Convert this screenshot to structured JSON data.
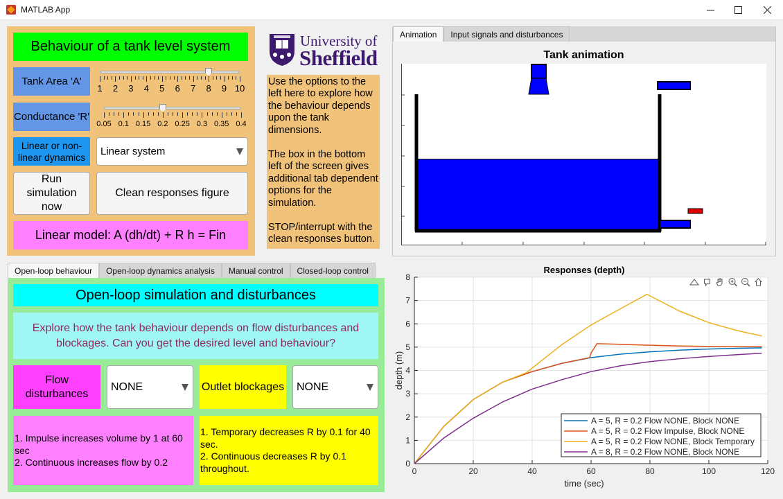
{
  "window": {
    "title": "MATLAB App"
  },
  "header": {
    "title": "Behaviour of a tank level system"
  },
  "controls": {
    "tank_area": {
      "label": "Tank Area 'A'",
      "ticks": [
        "1",
        "2",
        "3",
        "4",
        "5",
        "6",
        "7",
        "8",
        "9",
        "10"
      ],
      "value": 8
    },
    "conductance": {
      "label": "Conductance 'R'",
      "ticks": [
        "0.05",
        "0.1",
        "0.15",
        "0.2",
        "0.25",
        "0.3",
        "0.35",
        "0.4"
      ],
      "value": 0.2
    },
    "dynamics": {
      "label": "Linear or non-linear dynamics",
      "selected": "Linear system"
    },
    "run_button": "Run simulation now",
    "clean_button": "Clean responses figure",
    "model_text": "Linear model:  A (dh/dt) + R h = Fin"
  },
  "logo": {
    "line1": "University of",
    "line2": "Sheffield"
  },
  "instructions": {
    "p1": "Use the options to the left here to explore how the behaviour depends upon the tank dimensions.",
    "p2": "The box in the bottom left of the screen gives additional tab dependent options for the simulation.",
    "p3": "STOP/interrupt with the clean responses button."
  },
  "top_tabs": [
    "Animation",
    "Input signals and disturbances"
  ],
  "animation": {
    "title": "Tank animation",
    "level_fraction": 0.6
  },
  "bottom_tabs": [
    "Open-loop behaviour",
    "Open-loop dynamics analysis",
    "Manual control",
    "Closed-loop control"
  ],
  "openloop": {
    "title": "Open-loop simulation and disturbances",
    "subtitle": "Explore how the tank behaviour depends on flow disturbances and blockages. Can you get the desired level and behaviour?",
    "flow_label": "Flow disturbances",
    "flow_selected": "NONE",
    "outlet_label": "Outlet blockages",
    "outlet_selected": "NONE",
    "flow_info_1": "1. Impulse increases volume by 1 at 60 sec",
    "flow_info_2": "2. Continuous increases flow by 0.2",
    "outlet_info_1": "1. Temporary decreases R by 0.1 for 40 sec.",
    "outlet_info_2": "2. Continuous decreases R by 0.1 throughout."
  },
  "chart_data": {
    "type": "line",
    "title": "Responses (depth)",
    "xlabel": "time (sec)",
    "ylabel": "depth (m)",
    "xlim": [
      0,
      120
    ],
    "ylim": [
      0,
      8
    ],
    "xticks": [
      "0",
      "20",
      "40",
      "60",
      "80",
      "100",
      "120"
    ],
    "yticks": [
      "0",
      "1",
      "2",
      "3",
      "4",
      "5",
      "6",
      "7",
      "8"
    ],
    "grid": true,
    "legend_position": "bottom-right",
    "series": [
      {
        "name": "A = 5, R = 0.2 Flow NONE, Block NONE",
        "color": "#0072BD",
        "x": [
          0,
          10,
          20,
          30,
          40,
          50,
          60,
          70,
          80,
          90,
          100,
          110,
          118
        ],
        "y": [
          0,
          1.6,
          2.75,
          3.5,
          3.95,
          4.3,
          4.55,
          4.7,
          4.8,
          4.87,
          4.92,
          4.95,
          4.97
        ]
      },
      {
        "name": "A = 5, R = 0.2 Flow Impulse, Block NONE",
        "color": "#D95319",
        "x": [
          0,
          10,
          20,
          30,
          40,
          50,
          59.5,
          60,
          62,
          70,
          80,
          90,
          100,
          110,
          118
        ],
        "y": [
          0,
          1.6,
          2.75,
          3.5,
          3.95,
          4.3,
          4.55,
          4.75,
          5.15,
          5.12,
          5.08,
          5.05,
          5.03,
          5.02,
          5.02
        ]
      },
      {
        "name": "A = 5, R = 0.2 Flow NONE, Block Temporary",
        "color": "#EDB120",
        "x": [
          0,
          10,
          20,
          30,
          38,
          40,
          50,
          60,
          70,
          79,
          80,
          90,
          100,
          110,
          118
        ],
        "y": [
          0,
          1.6,
          2.75,
          3.5,
          3.9,
          4.1,
          5.1,
          5.95,
          6.65,
          7.27,
          7.2,
          6.55,
          6.05,
          5.7,
          5.48
        ]
      },
      {
        "name": "A = 8, R = 0.2 Flow NONE, Block NONE",
        "color": "#7E2F8E",
        "x": [
          0,
          10,
          20,
          30,
          40,
          50,
          60,
          70,
          80,
          90,
          100,
          110,
          118
        ],
        "y": [
          0,
          1.1,
          1.95,
          2.65,
          3.2,
          3.6,
          3.95,
          4.2,
          4.38,
          4.5,
          4.6,
          4.68,
          4.74
        ]
      }
    ]
  },
  "toolbar_icons": [
    "export-icon",
    "data-tips-icon",
    "pan-icon",
    "zoom-in-icon",
    "zoom-out-icon",
    "home-icon"
  ]
}
